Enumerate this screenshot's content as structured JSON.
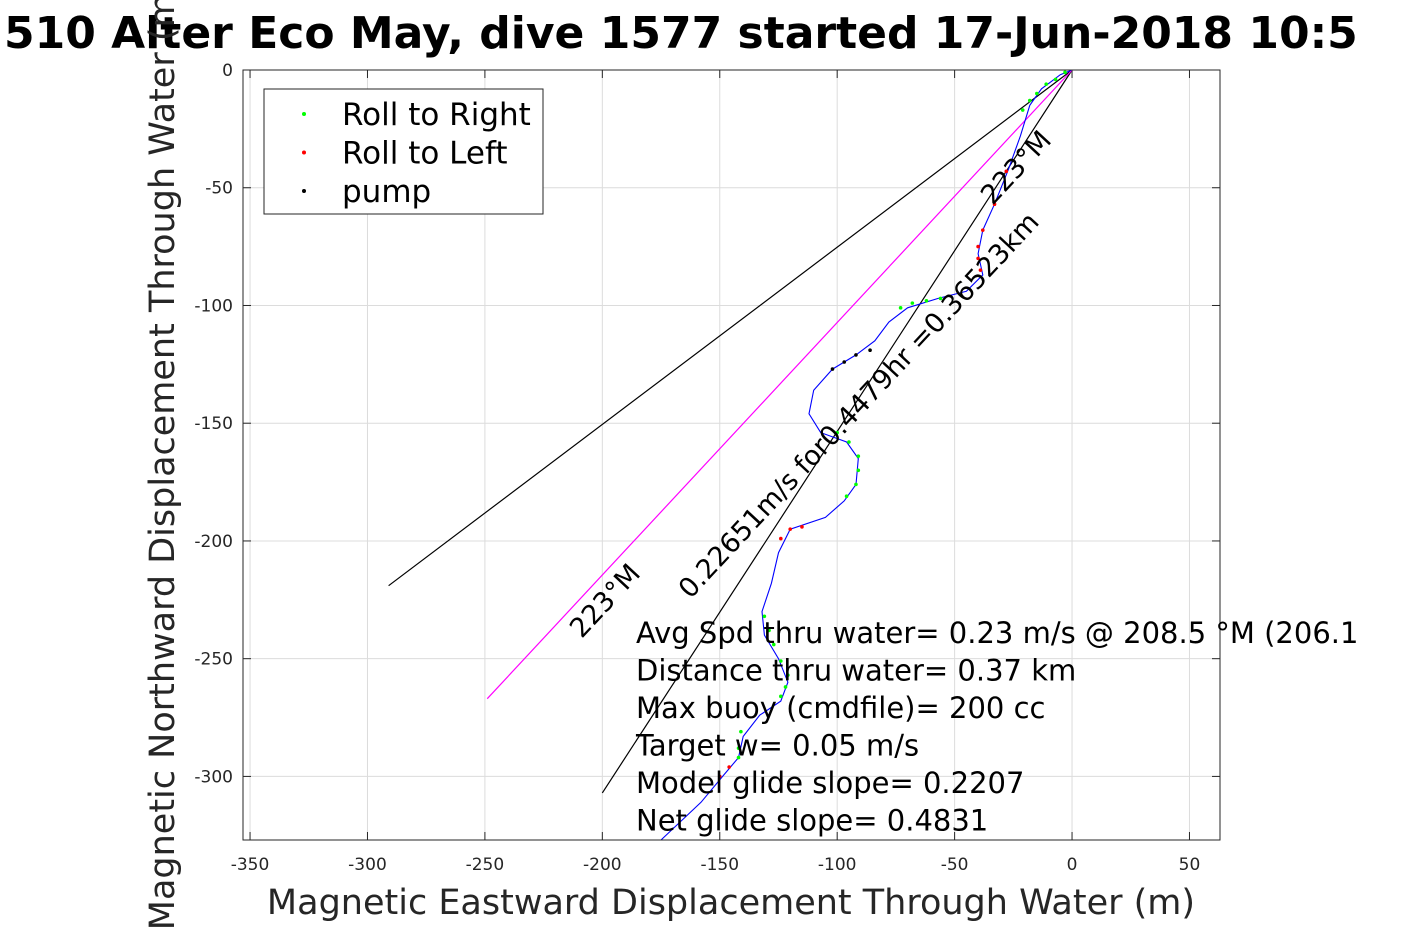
{
  "chart_data": {
    "type": "line",
    "title": "510 Alter Eco May, dive 1577 started 17-Jun-2018 10:5",
    "xlabel": "Magnetic Eastward Displacement Through Water (m)",
    "ylabel": "Magnetic Northward Displacement Through Water (m)",
    "xlim": [
      -353,
      63
    ],
    "ylim": [
      -327,
      0
    ],
    "xticks": [
      -350,
      -300,
      -250,
      -200,
      -150,
      -100,
      -50,
      0,
      50
    ],
    "yticks": [
      0,
      -50,
      -100,
      -150,
      -200,
      -250,
      -300
    ],
    "xtick_labels": [
      "-350",
      "-300",
      "-250",
      "-200",
      "-150",
      "-100",
      "-50",
      "0",
      "50"
    ],
    "ytick_labels": [
      "0",
      "-50",
      "-100",
      "-150",
      "-200",
      "-250",
      "-300"
    ],
    "grid": true,
    "legend_position": "top-left",
    "legend": [
      {
        "label": "Roll to Right",
        "color": "#00ff00"
      },
      {
        "label": "Roll to Left",
        "color": "#ff0000"
      },
      {
        "label": "pump",
        "color": "#000000"
      }
    ],
    "track": {
      "color": "#0000ff",
      "points": [
        [
          0,
          0
        ],
        [
          -5,
          -2
        ],
        [
          -9,
          -5
        ],
        [
          -13,
          -8
        ],
        [
          -18,
          -15
        ],
        [
          -22,
          -28
        ],
        [
          -27,
          -42
        ],
        [
          -33,
          -57
        ],
        [
          -38,
          -68
        ],
        [
          -40,
          -78
        ],
        [
          -38,
          -87
        ],
        [
          -45,
          -94
        ],
        [
          -57,
          -97
        ],
        [
          -70,
          -101
        ],
        [
          -78,
          -107
        ],
        [
          -84,
          -115
        ],
        [
          -92,
          -121
        ],
        [
          -102,
          -127
        ],
        [
          -110,
          -136
        ],
        [
          -112,
          -146
        ],
        [
          -107,
          -154
        ],
        [
          -96,
          -158
        ],
        [
          -91,
          -165
        ],
        [
          -92,
          -176
        ],
        [
          -97,
          -183
        ],
        [
          -105,
          -190
        ],
        [
          -120,
          -195
        ],
        [
          -125,
          -205
        ],
        [
          -128,
          -218
        ],
        [
          -132,
          -230
        ],
        [
          -131,
          -240
        ],
        [
          -125,
          -250
        ],
        [
          -121,
          -260
        ],
        [
          -124,
          -268
        ],
        [
          -133,
          -274
        ],
        [
          -140,
          -283
        ],
        [
          -142,
          -292
        ],
        [
          -148,
          -299
        ],
        [
          -158,
          -311
        ],
        [
          -175,
          -327
        ]
      ]
    },
    "roll_right": [
      [
        -3,
        -1
      ],
      [
        -7,
        -4
      ],
      [
        -11,
        -6
      ],
      [
        -15,
        -10
      ],
      [
        -18,
        -13
      ],
      [
        -21,
        -17
      ],
      [
        -56,
        -97
      ],
      [
        -62,
        -98
      ],
      [
        -68,
        -99
      ],
      [
        -73,
        -101
      ],
      [
        -100,
        -154
      ],
      [
        -95,
        -158
      ],
      [
        -91,
        -164
      ],
      [
        -91,
        -170
      ],
      [
        -92,
        -176
      ],
      [
        -96,
        -181
      ],
      [
        -131,
        -232
      ],
      [
        -129,
        -238
      ],
      [
        -127,
        -244
      ],
      [
        -124,
        -251
      ],
      [
        -121,
        -257
      ],
      [
        -122,
        -262
      ],
      [
        -124,
        -266
      ],
      [
        -141,
        -281
      ],
      [
        -142,
        -288
      ],
      [
        -142,
        -292
      ]
    ],
    "roll_left": [
      [
        -28,
        -43
      ],
      [
        -33,
        -57
      ],
      [
        -38,
        -68
      ],
      [
        -40,
        -75
      ],
      [
        -40,
        -80
      ],
      [
        -39,
        -85
      ],
      [
        -115,
        -194
      ],
      [
        -120,
        -195
      ],
      [
        -124,
        -199
      ],
      [
        -146,
        -296
      ],
      [
        -150,
        -300
      ]
    ],
    "pump": [
      [
        -86,
        -119
      ],
      [
        -92,
        -121
      ],
      [
        -97,
        -124
      ],
      [
        -102,
        -127
      ]
    ],
    "reference_lines": [
      {
        "name": "line-upper",
        "color": "#000000",
        "points": [
          [
            0,
            0
          ],
          [
            -291,
            -219
          ]
        ]
      },
      {
        "name": "line-lower",
        "color": "#000000",
        "points": [
          [
            0,
            0
          ],
          [
            -200,
            -307
          ]
        ]
      },
      {
        "name": "line-mean",
        "color": "#ff00ff",
        "points": [
          [
            0,
            0
          ],
          [
            -249,
            -267
          ]
        ]
      }
    ],
    "rotated_labels": [
      {
        "text": "223°M",
        "at": [
          -21,
          -44
        ]
      },
      {
        "text": "0.22651m/s for0.4479hr =0.36523km",
        "at": [
          -88,
          -145
        ]
      },
      {
        "text": "223°M",
        "at": [
          -196,
          -228
        ]
      }
    ],
    "annotations": [
      "Avg Spd thru water=  0.23 m/s @ 208.5 °M (206.1",
      "Distance thru water=  0.37 km",
      "Max buoy (cmdfile)= 200 cc",
      "Target w= 0.05 m/s",
      "Model glide slope= 0.2207",
      "Net glide slope= 0.4831"
    ]
  }
}
